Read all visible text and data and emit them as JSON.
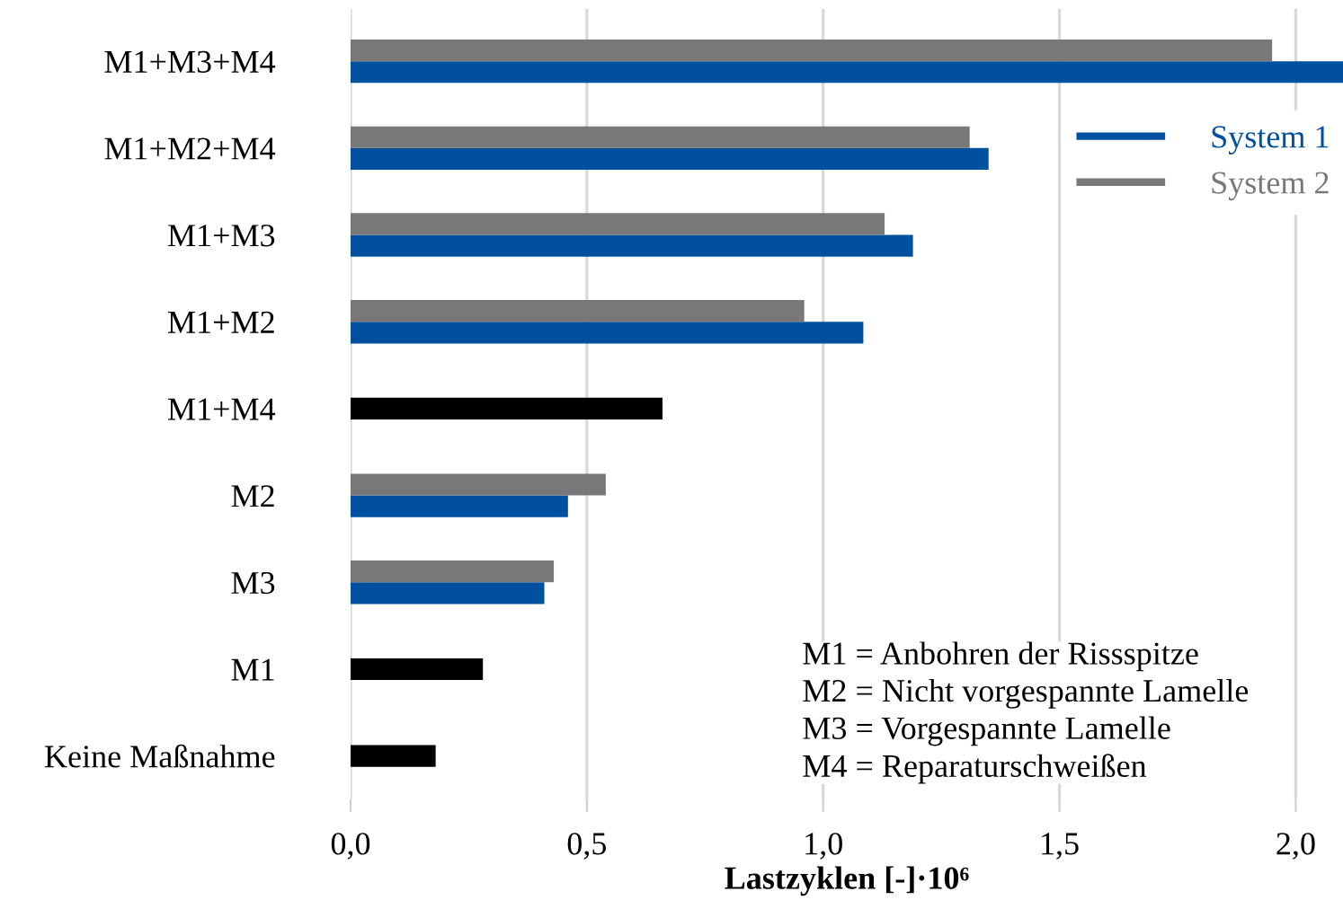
{
  "chart_data": {
    "type": "bar",
    "orientation": "horizontal",
    "categories": [
      "M1+M3+M4",
      "M1+M2+M4",
      "M1+M3",
      "M1+M2",
      "M1+M4",
      "M2",
      "M3",
      "M1",
      "Keine Maßnahme"
    ],
    "series": [
      {
        "name": "System 1",
        "color": "#0050a0",
        "values": [
          2.1,
          1.35,
          1.19,
          1.085,
          null,
          0.46,
          0.41,
          null,
          null
        ]
      },
      {
        "name": "System 2",
        "color": "#787878",
        "values": [
          1.95,
          1.31,
          1.13,
          0.96,
          null,
          0.54,
          0.43,
          null,
          null
        ]
      },
      {
        "color": "#000000",
        "values": [
          null,
          null,
          null,
          null,
          0.66,
          null,
          null,
          0.28,
          0.18
        ]
      }
    ],
    "xlabel": "Lastzyklen [-]·10⁶",
    "xlim": [
      0,
      2.1
    ],
    "xticks": [
      {
        "value": 0,
        "label": "0,0"
      },
      {
        "value": 0.5,
        "label": "0,5"
      },
      {
        "value": 1.0,
        "label": "1,0"
      },
      {
        "value": 1.5,
        "label": "1,5"
      },
      {
        "value": 2.0,
        "label": "2,0"
      }
    ],
    "grid": "x",
    "legend": "right",
    "annotations": [
      "M1 = Anbohren der Rissspitze\nM2 = Nicht vorgespannte Lamelle\nM3 = Vorgespannte Lamelle\nM4 = Reparaturschweißen"
    ]
  }
}
